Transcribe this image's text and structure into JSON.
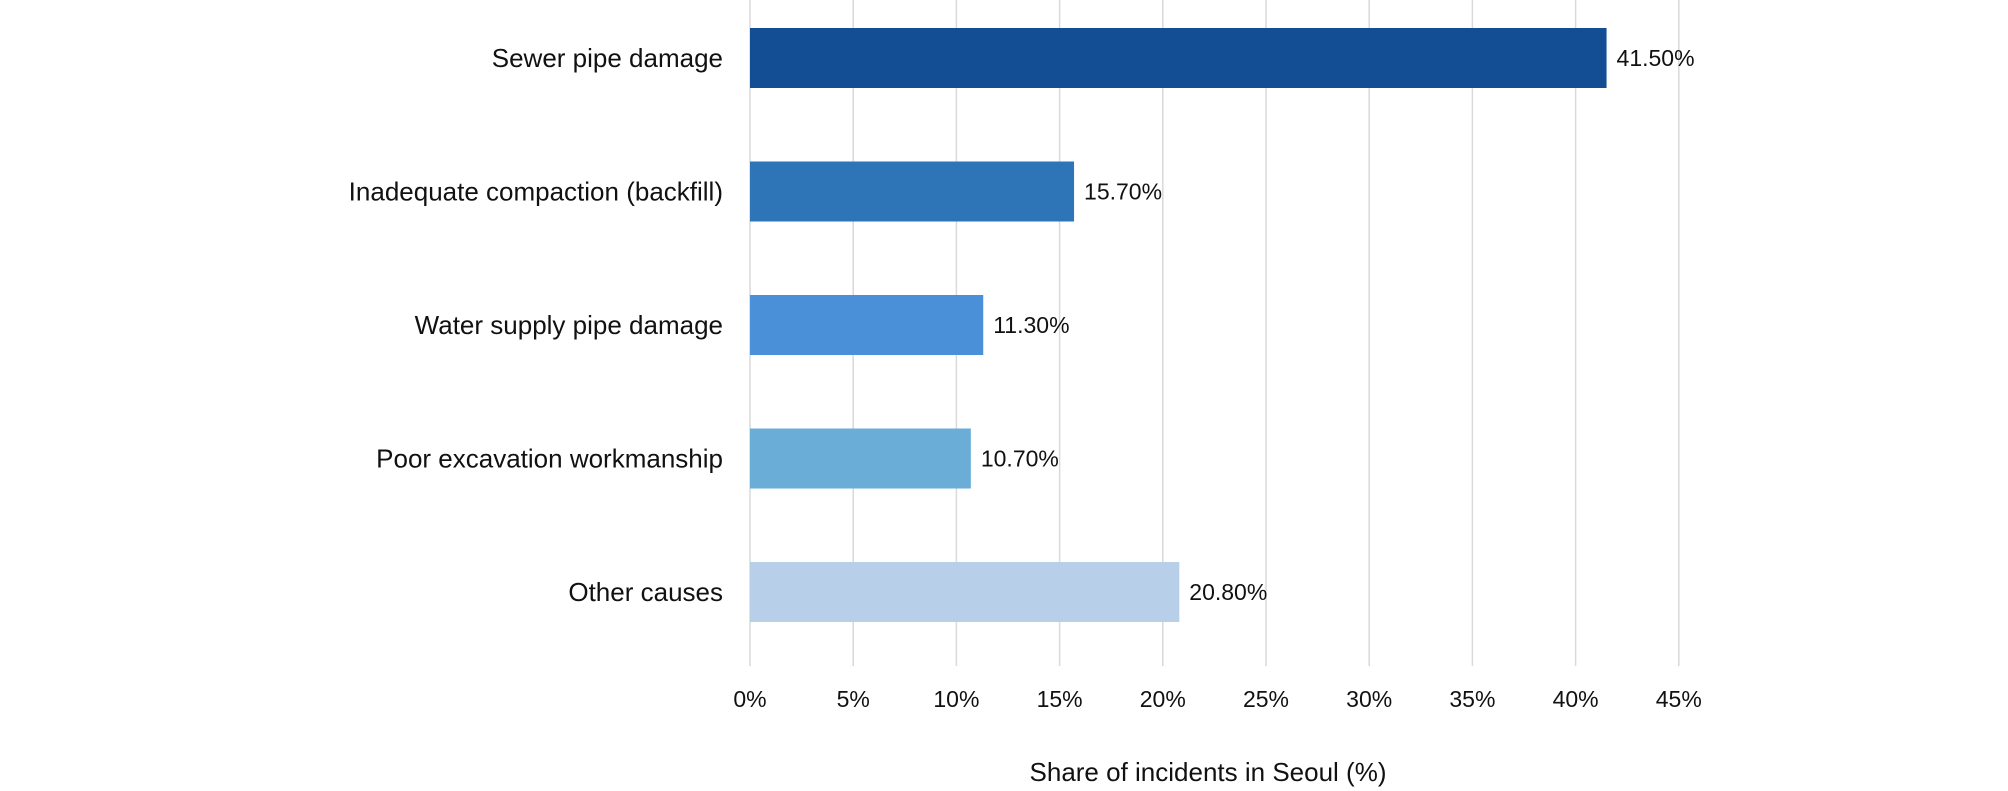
{
  "chart_data": {
    "type": "bar",
    "orientation": "horizontal",
    "categories": [
      "Sewer pipe damage",
      "Inadequate compaction (backfill)",
      "Water supply pipe damage",
      "Poor excavation workmanship",
      "Other causes"
    ],
    "values": [
      41.5,
      15.7,
      11.3,
      10.7,
      20.8
    ],
    "data_labels": [
      "41.50%",
      "15.70%",
      "11.30%",
      "10.70%",
      "20.80%"
    ],
    "bar_colors": [
      "#134d94",
      "#2e75b8",
      "#4a90d9",
      "#6aaed8",
      "#b8cfea"
    ],
    "xlabel": "Share of incidents in Seoul (%)",
    "ylabel": "",
    "xlim": [
      0,
      45
    ],
    "x_ticks": [
      0,
      5,
      10,
      15,
      20,
      25,
      30,
      35,
      40,
      45
    ],
    "x_tick_labels": [
      "0%",
      "5%",
      "10%",
      "15%",
      "20%",
      "25%",
      "30%",
      "35%",
      "40%",
      "45%"
    ],
    "grid": "vertical",
    "grid_color": "#d9d9d9",
    "legend": "none"
  }
}
